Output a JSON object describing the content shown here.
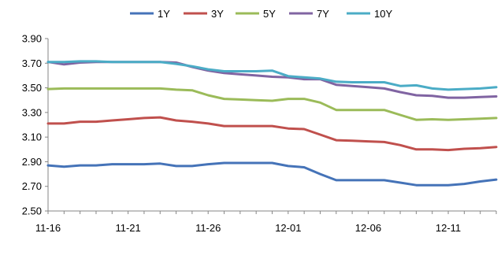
{
  "chart_data": {
    "type": "line",
    "title": "",
    "xlabel": "",
    "ylabel": "",
    "ylim": [
      2.5,
      3.9
    ],
    "yticks": [
      "3.90",
      "3.70",
      "3.50",
      "3.30",
      "3.10",
      "2.90",
      "2.70",
      "2.50"
    ],
    "xticks": [
      "11-16",
      "11-21",
      "11-26",
      "12-01",
      "12-06",
      "12-11"
    ],
    "x": [
      "11-16",
      "11-17",
      "11-18",
      "11-19",
      "11-20",
      "11-21",
      "11-22",
      "11-23",
      "11-24",
      "11-25",
      "11-26",
      "11-27",
      "11-28",
      "11-29",
      "11-30",
      "12-01",
      "12-02",
      "12-03",
      "12-04",
      "12-05",
      "12-06",
      "12-07",
      "12-08",
      "12-09",
      "12-10",
      "12-11",
      "12-12",
      "12-13",
      "12-14"
    ],
    "legend_position": "top",
    "grid": false,
    "series": [
      {
        "name": "1Y",
        "color": "#4573B8",
        "values": [
          2.87,
          2.86,
          2.87,
          2.87,
          2.88,
          2.88,
          2.88,
          2.885,
          2.865,
          2.865,
          2.88,
          2.89,
          2.89,
          2.89,
          2.89,
          2.865,
          2.855,
          2.8,
          2.75,
          2.75,
          2.75,
          2.75,
          2.73,
          2.71,
          2.71,
          2.71,
          2.72,
          2.74,
          2.755
        ]
      },
      {
        "name": "3Y",
        "color": "#C0504D",
        "values": [
          3.21,
          3.21,
          3.225,
          3.225,
          3.235,
          3.245,
          3.255,
          3.26,
          3.235,
          3.225,
          3.21,
          3.19,
          3.19,
          3.19,
          3.19,
          3.17,
          3.165,
          3.12,
          3.075,
          3.07,
          3.065,
          3.06,
          3.035,
          3.0,
          3.0,
          2.995,
          3.005,
          3.01,
          3.02
        ]
      },
      {
        "name": "5Y",
        "color": "#9BBB59",
        "values": [
          3.49,
          3.495,
          3.495,
          3.495,
          3.495,
          3.495,
          3.495,
          3.495,
          3.485,
          3.48,
          3.44,
          3.41,
          3.405,
          3.4,
          3.395,
          3.41,
          3.41,
          3.38,
          3.32,
          3.32,
          3.32,
          3.32,
          3.28,
          3.24,
          3.245,
          3.24,
          3.245,
          3.25,
          3.255
        ]
      },
      {
        "name": "7Y",
        "color": "#8064A2",
        "values": [
          3.71,
          3.69,
          3.705,
          3.71,
          3.71,
          3.71,
          3.71,
          3.71,
          3.705,
          3.67,
          3.64,
          3.62,
          3.61,
          3.6,
          3.59,
          3.585,
          3.57,
          3.57,
          3.525,
          3.515,
          3.505,
          3.495,
          3.465,
          3.44,
          3.435,
          3.42,
          3.42,
          3.425,
          3.43
        ]
      },
      {
        "name": "10Y",
        "color": "#4BACC6",
        "values": [
          3.71,
          3.71,
          3.715,
          3.715,
          3.71,
          3.71,
          3.71,
          3.71,
          3.695,
          3.675,
          3.65,
          3.635,
          3.635,
          3.635,
          3.64,
          3.595,
          3.585,
          3.575,
          3.55,
          3.545,
          3.545,
          3.545,
          3.515,
          3.52,
          3.495,
          3.485,
          3.49,
          3.495,
          3.505
        ]
      }
    ]
  }
}
